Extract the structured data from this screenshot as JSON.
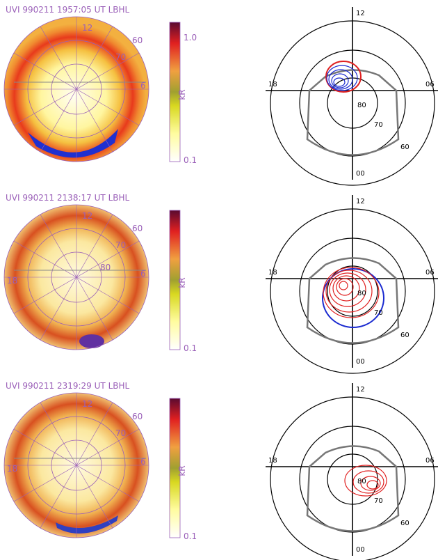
{
  "panels": [
    {
      "title": "UVI 990211 1957:05 UT LBHL",
      "colorbar": {
        "top": "1.0",
        "unit": "kR",
        "bottom": "0.1"
      },
      "polar_labels": {
        "noon": "12",
        "lat60": "60",
        "lat70": "70",
        "dawn": "6"
      },
      "model_labels": {
        "noon": "12",
        "dusk": "18",
        "dawn": "06",
        "lat80": "80",
        "lat70": "70",
        "lat60": "60",
        "midnight": "00"
      }
    },
    {
      "title": "UVI 990211 2138:17 UT LBHL",
      "colorbar": {
        "unit": "kR",
        "bottom": "0.1"
      },
      "polar_labels": {
        "noon": "12",
        "lat60": "60",
        "lat70": "70",
        "lat80": "80",
        "dusk": "18",
        "dawn": "6"
      },
      "model_labels": {
        "noon": "12",
        "dusk": "18",
        "dawn": "06",
        "lat80": "80",
        "lat70": "70",
        "lat60": "60",
        "midnight": "00"
      }
    },
    {
      "title": "UVI 990211 2319:29 UT LBHL",
      "colorbar": {
        "unit": "kR",
        "bottom": "0.1"
      },
      "polar_labels": {
        "noon": "12",
        "lat60": "60",
        "lat70": "70",
        "dusk": "18",
        "dawn": "6"
      },
      "model_labels": {
        "noon": "12",
        "dusk": "18",
        "dawn": "06",
        "lat80": "80",
        "lat70": "70",
        "lat60": "60",
        "midnight": "00"
      }
    }
  ]
}
